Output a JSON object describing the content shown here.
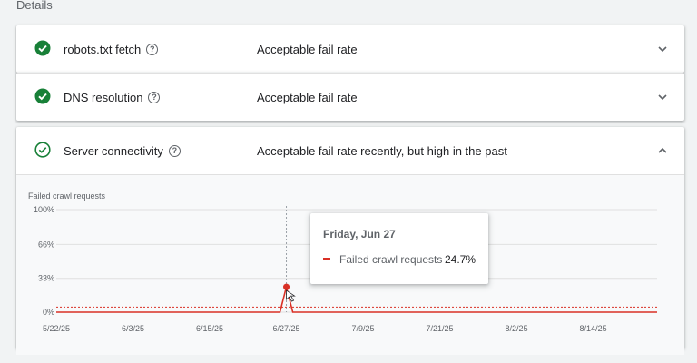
{
  "section_title": "Details",
  "rows": [
    {
      "name": "robots.txt fetch",
      "value": "Acceptable fail rate",
      "status": "pass"
    },
    {
      "name": "DNS resolution",
      "value": "Acceptable fail rate",
      "status": "pass"
    },
    {
      "name": "Server connectivity",
      "value": "Acceptable fail rate recently, but high in the past",
      "status": "pass-outline"
    }
  ],
  "colors": {
    "pass_green": "#188038",
    "series_red": "#d93025",
    "grid": "#e0e0e0"
  },
  "tooltip": {
    "date": "Friday, Jun 27",
    "label": "Failed crawl requests",
    "value": "24.7%"
  },
  "chart_data": {
    "type": "line",
    "title": "",
    "ylabel": "Failed crawl requests",
    "xlabel": "",
    "ylim": [
      0,
      100
    ],
    "yticks": [
      "0%",
      "33%",
      "66%",
      "100%"
    ],
    "ytick_values": [
      0,
      33,
      66,
      100
    ],
    "xticks": [
      "5/22/25",
      "6/3/25",
      "6/15/25",
      "6/27/25",
      "7/9/25",
      "7/21/25",
      "8/2/25",
      "8/14/25"
    ],
    "threshold": 5,
    "series": [
      {
        "name": "Failed crawl requests",
        "points": [
          [
            "5/22/25",
            0
          ],
          [
            "6/25/25",
            0
          ],
          [
            "6/26/25",
            0
          ],
          [
            "6/27/25",
            24.7
          ],
          [
            "6/28/25",
            0
          ],
          [
            "8/24/25",
            0
          ]
        ]
      }
    ]
  }
}
